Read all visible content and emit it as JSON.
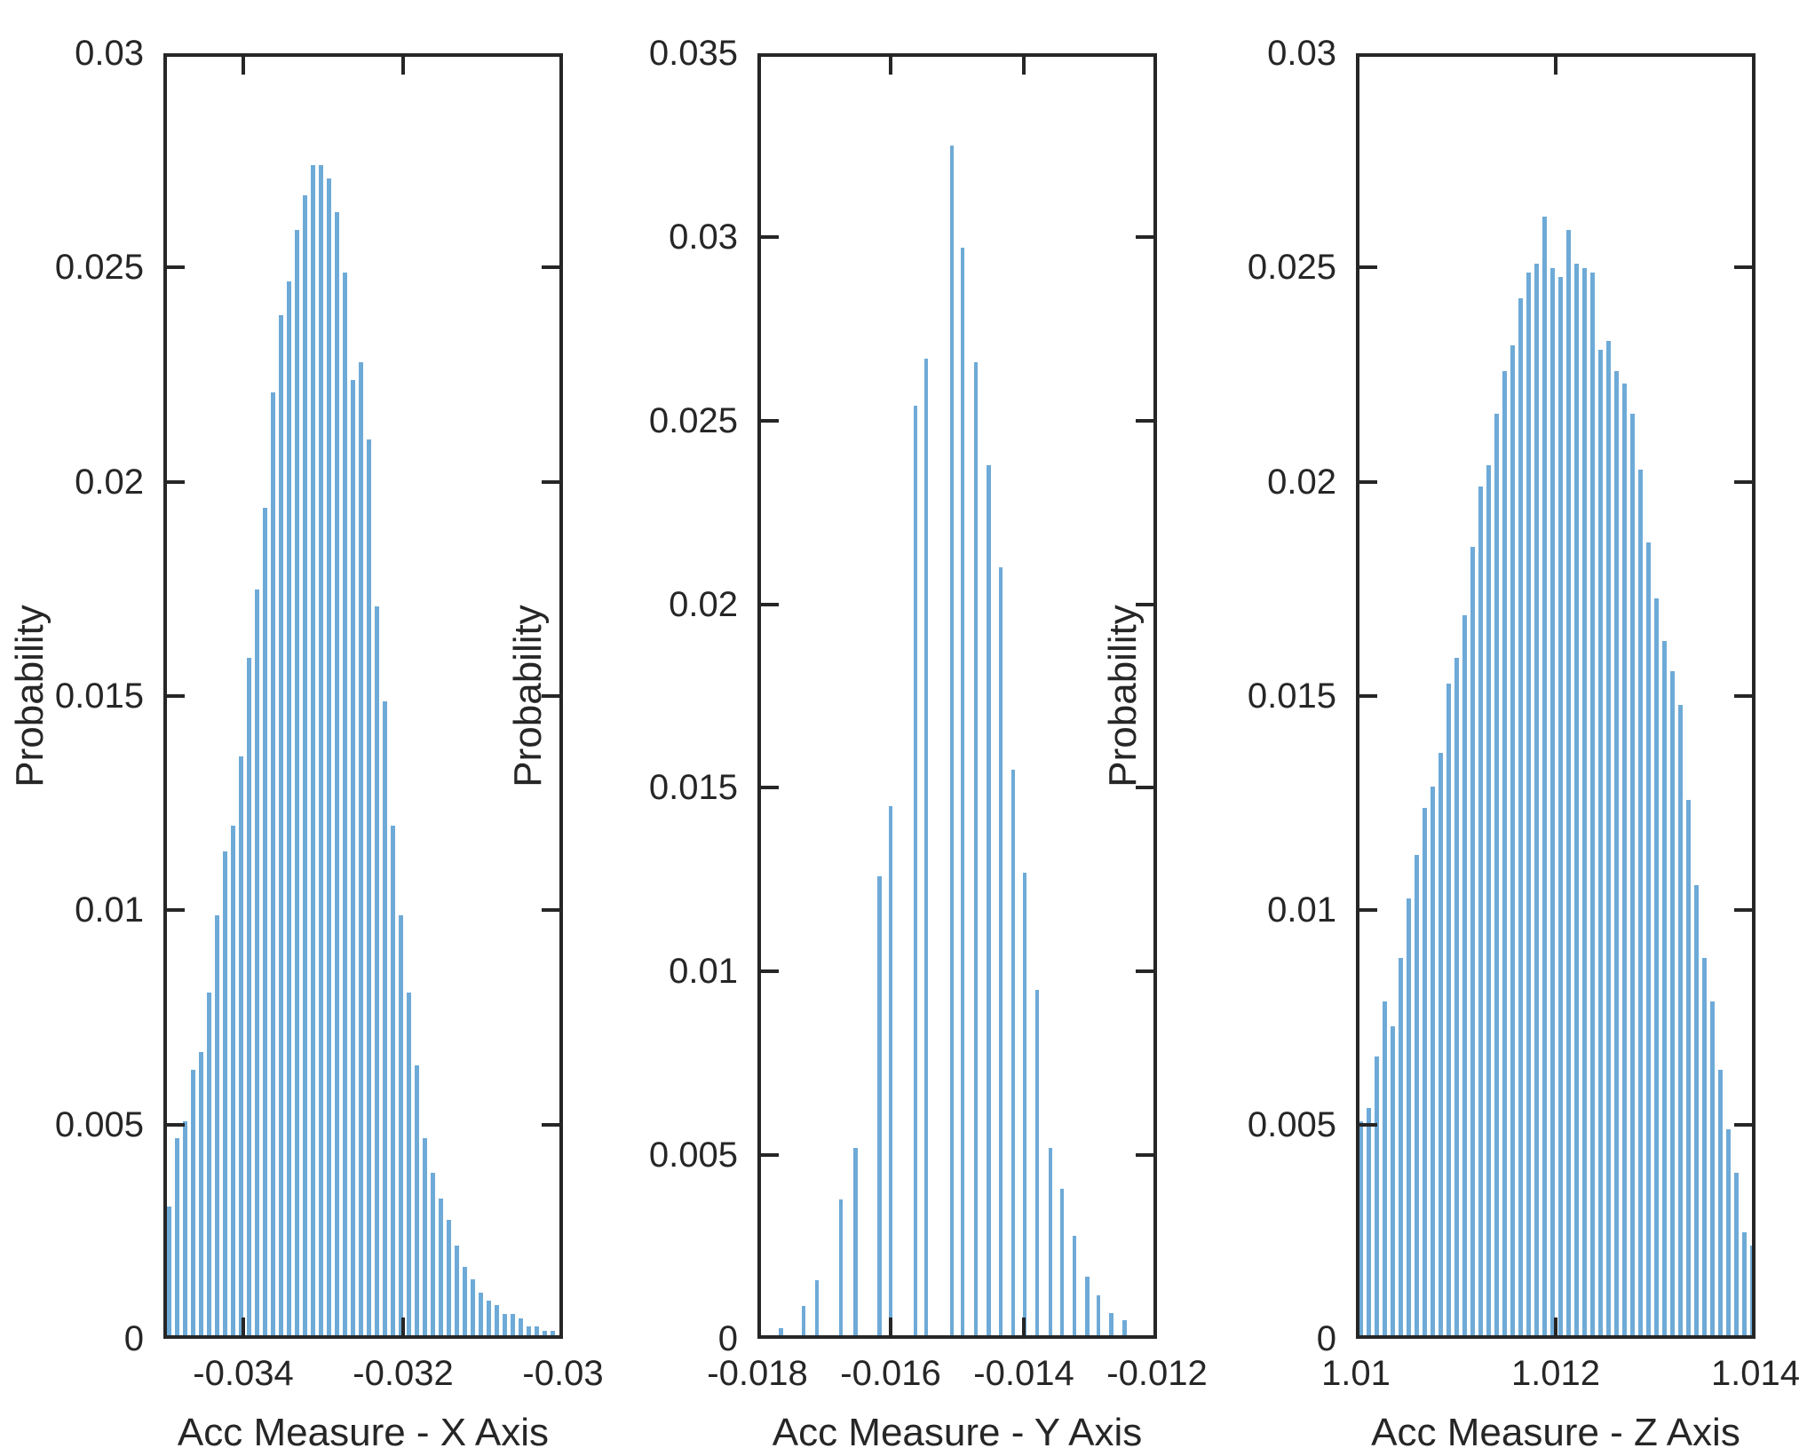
{
  "figure": {
    "background": "#ffffff",
    "bar_color": "#6EAAD7",
    "axis_color": "#262626",
    "text_color": "#262626"
  },
  "chart_data": [
    {
      "type": "bar",
      "title": "",
      "xlabel": "Acc Measure - X Axis",
      "ylabel": "Probability",
      "legend": "none",
      "grid": false,
      "xlim": [
        -0.035,
        -0.03
      ],
      "ylim": [
        0,
        0.03
      ],
      "x_ticks": {
        "values": [
          -0.034,
          -0.032,
          -0.03
        ],
        "labels": [
          "-0.034",
          "-0.032",
          "-0.03"
        ]
      },
      "y_ticks": {
        "values": [
          0,
          0.005,
          0.01,
          0.015,
          0.02,
          0.025,
          0.03
        ],
        "labels": [
          "0",
          "0.005",
          "0.01",
          "0.015",
          "0.02",
          "0.025",
          "0.03"
        ]
      },
      "x": [
        -0.03493,
        -0.03483,
        -0.03473,
        -0.03463,
        -0.03453,
        -0.03443,
        -0.03433,
        -0.03423,
        -0.03413,
        -0.03403,
        -0.03393,
        -0.03383,
        -0.03373,
        -0.03363,
        -0.03353,
        -0.03343,
        -0.03333,
        -0.03323,
        -0.03313,
        -0.03303,
        -0.03293,
        -0.03283,
        -0.03273,
        -0.03263,
        -0.03253,
        -0.03243,
        -0.03233,
        -0.03223,
        -0.03213,
        -0.03203,
        -0.03193,
        -0.03183,
        -0.03173,
        -0.03163,
        -0.03153,
        -0.03143,
        -0.03133,
        -0.03123,
        -0.03113,
        -0.03103,
        -0.03093,
        -0.03083,
        -0.03073,
        -0.03063,
        -0.03053,
        -0.03043,
        -0.03033,
        -0.03023,
        -0.03013
      ],
      "values": [
        0.003,
        0.0046,
        0.005,
        0.0062,
        0.0066,
        0.008,
        0.0098,
        0.0113,
        0.0119,
        0.0135,
        0.0158,
        0.0174,
        0.0193,
        0.022,
        0.0238,
        0.0246,
        0.0258,
        0.0266,
        0.0273,
        0.0273,
        0.027,
        0.0262,
        0.0248,
        0.0223,
        0.0227,
        0.0209,
        0.017,
        0.0148,
        0.0119,
        0.0098,
        0.008,
        0.0063,
        0.0046,
        0.0038,
        0.0032,
        0.0027,
        0.0021,
        0.0016,
        0.0013,
        0.001,
        0.0008,
        0.0007,
        0.0005,
        0.0005,
        0.0004,
        0.0002,
        0.0002,
        0.0001,
        0.0001
      ]
    },
    {
      "type": "bar",
      "title": "",
      "xlabel": "Acc Measure - Y Axis",
      "ylabel": "Probability",
      "legend": "none",
      "grid": false,
      "xlim": [
        -0.018,
        -0.012
      ],
      "ylim": [
        0,
        0.035
      ],
      "x_ticks": {
        "values": [
          -0.018,
          -0.016,
          -0.014,
          -0.012
        ],
        "labels": [
          "-0.018",
          "-0.016",
          "-0.014",
          "-0.012"
        ]
      },
      "y_ticks": {
        "values": [
          0,
          0.005,
          0.01,
          0.015,
          0.02,
          0.025,
          0.03,
          0.035
        ],
        "labels": [
          "0",
          "0.005",
          "0.01",
          "0.015",
          "0.02",
          "0.025",
          "0.03",
          "0.035"
        ]
      },
      "x": [
        -0.01765,
        -0.01731,
        -0.01711,
        -0.01675,
        -0.01653,
        -0.01617,
        -0.016,
        -0.01563,
        -0.01547,
        -0.01508,
        -0.01492,
        -0.01472,
        -0.01453,
        -0.01435,
        -0.01416,
        -0.01399,
        -0.0138,
        -0.0136,
        -0.01343,
        -0.01324,
        -0.01305,
        -0.01288,
        -0.01269,
        -0.01249
      ],
      "values": [
        0.0002,
        0.0008,
        0.0015,
        0.0037,
        0.0051,
        0.0125,
        0.0144,
        0.0253,
        0.0266,
        0.0324,
        0.0296,
        0.0265,
        0.0237,
        0.0209,
        0.0154,
        0.0126,
        0.0094,
        0.0051,
        0.004,
        0.0027,
        0.0016,
        0.0011,
        0.0006,
        0.0004
      ]
    },
    {
      "type": "bar",
      "title": "",
      "xlabel": "Acc Measure - Z Axis",
      "ylabel": "Probability",
      "legend": "none",
      "grid": false,
      "xlim": [
        1.01,
        1.014
      ],
      "ylim": [
        0,
        0.03
      ],
      "x_ticks": {
        "values": [
          1.01,
          1.012,
          1.014
        ],
        "labels": [
          "1.01",
          "1.012",
          "1.014"
        ]
      },
      "y_ticks": {
        "values": [
          0,
          0.005,
          0.01,
          0.015,
          0.02,
          0.025,
          0.03
        ],
        "labels": [
          "0",
          "0.005",
          "0.01",
          "0.015",
          "0.02",
          "0.025",
          "0.03"
        ]
      },
      "x": [
        1.01005,
        1.01013,
        1.01021,
        1.01029,
        1.01037,
        1.01045,
        1.01053,
        1.01061,
        1.01069,
        1.01077,
        1.01085,
        1.01093,
        1.01101,
        1.01109,
        1.01117,
        1.01125,
        1.01133,
        1.01141,
        1.01149,
        1.01157,
        1.01165,
        1.01173,
        1.01181,
        1.01189,
        1.01197,
        1.01205,
        1.01213,
        1.01221,
        1.01229,
        1.01237,
        1.01245,
        1.01253,
        1.01261,
        1.01269,
        1.01277,
        1.01285,
        1.01293,
        1.01301,
        1.01309,
        1.01317,
        1.01325,
        1.01333,
        1.01341,
        1.01349,
        1.01357,
        1.01365,
        1.01373,
        1.01381,
        1.01389,
        1.01397
      ],
      "values": [
        0.005,
        0.0053,
        0.0065,
        0.0078,
        0.0072,
        0.0088,
        0.0102,
        0.0112,
        0.0123,
        0.0128,
        0.0136,
        0.0152,
        0.0158,
        0.0168,
        0.0184,
        0.0198,
        0.0203,
        0.0215,
        0.0225,
        0.0231,
        0.0242,
        0.0248,
        0.025,
        0.0261,
        0.0249,
        0.0247,
        0.0258,
        0.025,
        0.0249,
        0.0248,
        0.023,
        0.0232,
        0.0225,
        0.0222,
        0.0215,
        0.0202,
        0.0185,
        0.0172,
        0.0162,
        0.0155,
        0.0147,
        0.0125,
        0.0105,
        0.0088,
        0.0078,
        0.0062,
        0.0048,
        0.0038,
        0.0024,
        0.0021
      ]
    }
  ]
}
